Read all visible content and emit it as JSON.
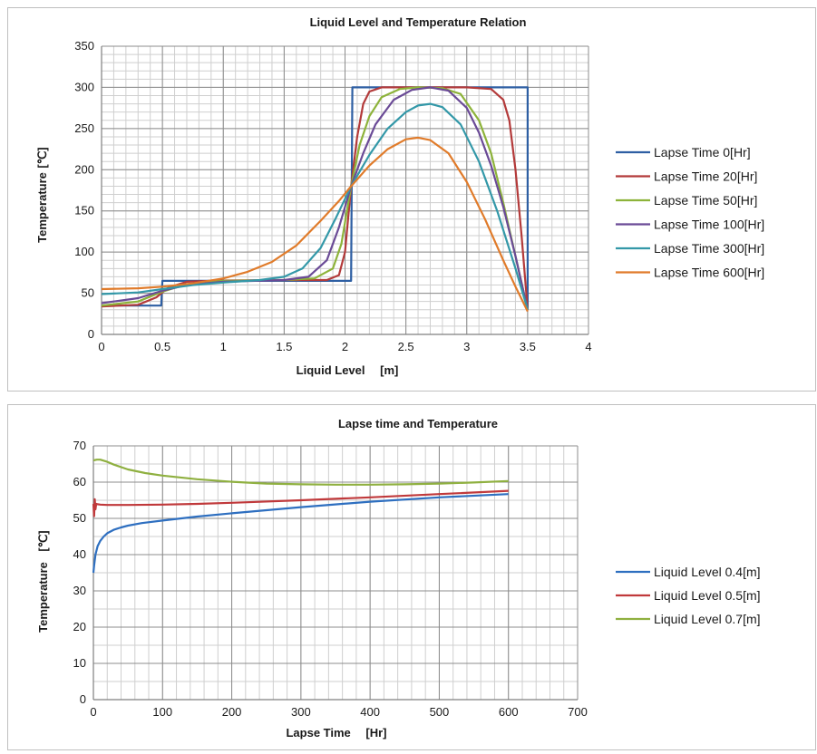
{
  "chart_data": [
    {
      "type": "line",
      "title": "Liquid Level and Temperature Relation",
      "xlabel": "Liquid Level  [m]",
      "ylabel": "Temperature",
      "yunit": "[℃]",
      "xlim": [
        0,
        4
      ],
      "ylim": [
        0,
        350
      ],
      "xticks": [
        "0",
        "0.5",
        "1",
        "1.5",
        "2",
        "2.5",
        "3",
        "3.5",
        "4"
      ],
      "yticks": [
        "0",
        "50",
        "100",
        "150",
        "200",
        "250",
        "300",
        "350"
      ],
      "grid": true,
      "legend": "right",
      "series": [
        {
          "name": "Lapse Time 0[Hr]",
          "color": "#2e5fa3",
          "x": [
            0,
            0.49,
            0.5,
            2.05,
            2.06,
            3.5,
            3.5
          ],
          "y": [
            35,
            35,
            65,
            65,
            300,
            300,
            30
          ]
        },
        {
          "name": "Lapse Time 20[Hr]",
          "color": "#b33a3a",
          "x": [
            0,
            0.3,
            0.45,
            0.55,
            0.7,
            1.0,
            1.5,
            1.85,
            1.95,
            2.0,
            2.05,
            2.1,
            2.15,
            2.2,
            2.3,
            2.4,
            2.5,
            2.6,
            3.0,
            3.2,
            3.3,
            3.35,
            3.4,
            3.45,
            3.5
          ],
          "y": [
            34,
            36,
            45,
            57,
            64,
            65.5,
            66,
            66,
            72,
            100,
            180,
            240,
            280,
            295,
            300,
            300,
            300,
            300,
            300,
            298,
            285,
            260,
            200,
            120,
            30
          ]
        },
        {
          "name": "Lapse Time 50[Hr]",
          "color": "#8db33a",
          "x": [
            0,
            0.3,
            0.5,
            0.7,
            1.0,
            1.5,
            1.75,
            1.9,
            1.97,
            2.05,
            2.12,
            2.2,
            2.3,
            2.45,
            2.6,
            2.8,
            2.95,
            3.1,
            3.2,
            3.3,
            3.4,
            3.5
          ],
          "y": [
            35,
            40,
            52,
            61,
            65,
            66,
            68,
            80,
            110,
            180,
            230,
            265,
            288,
            298,
            300,
            299,
            292,
            260,
            220,
            160,
            95,
            30
          ]
        },
        {
          "name": "Lapse Time 100[Hr]",
          "color": "#6a4a96",
          "x": [
            0,
            0.3,
            0.5,
            0.7,
            1.0,
            1.5,
            1.7,
            1.85,
            1.95,
            2.05,
            2.15,
            2.25,
            2.4,
            2.55,
            2.7,
            2.85,
            3.0,
            3.1,
            3.2,
            3.3,
            3.4,
            3.5
          ],
          "y": [
            38,
            44,
            53,
            60,
            64,
            66,
            70,
            90,
            130,
            180,
            220,
            255,
            285,
            297,
            300,
            296,
            275,
            245,
            205,
            155,
            95,
            30
          ]
        },
        {
          "name": "Lapse Time 300[Hr]",
          "color": "#3398a8",
          "x": [
            0,
            0.3,
            0.5,
            0.75,
            1.0,
            1.3,
            1.5,
            1.65,
            1.8,
            1.92,
            2.05,
            2.2,
            2.35,
            2.5,
            2.6,
            2.7,
            2.8,
            2.95,
            3.1,
            3.25,
            3.4,
            3.5
          ],
          "y": [
            49,
            51,
            55,
            60,
            63,
            66,
            70,
            80,
            105,
            140,
            180,
            218,
            250,
            270,
            278,
            280,
            276,
            255,
            210,
            150,
            80,
            30
          ]
        },
        {
          "name": "Lapse Time 600[Hr]",
          "color": "#e07b2a",
          "x": [
            0,
            0.3,
            0.5,
            0.75,
            1.0,
            1.2,
            1.4,
            1.6,
            1.8,
            1.95,
            2.05,
            2.2,
            2.35,
            2.5,
            2.6,
            2.7,
            2.85,
            3.0,
            3.15,
            3.3,
            3.4,
            3.5
          ],
          "y": [
            55,
            56,
            58,
            62,
            68,
            76,
            88,
            108,
            138,
            162,
            180,
            205,
            225,
            237,
            239,
            236,
            220,
            185,
            140,
            90,
            58,
            28
          ]
        }
      ]
    },
    {
      "type": "line",
      "title": "Lapse time and Temperature",
      "xlabel": "Lapse Time  [Hr]",
      "ylabel": "Temperature",
      "yunit": "[℃]",
      "xlim": [
        0,
        700
      ],
      "ylim": [
        0,
        70
      ],
      "xticks": [
        "0",
        "100",
        "200",
        "300",
        "400",
        "500",
        "600",
        "700"
      ],
      "yticks": [
        "0",
        "10",
        "20",
        "30",
        "40",
        "50",
        "60",
        "70"
      ],
      "grid": true,
      "legend": "right",
      "series": [
        {
          "name": "Liquid Level 0.4[m]",
          "color": "#2e6fc0",
          "x": [
            0,
            1,
            3,
            6,
            10,
            15,
            20,
            30,
            40,
            50,
            70,
            100,
            150,
            200,
            300,
            400,
            500,
            600
          ],
          "y": [
            35,
            37,
            40,
            42.3,
            43.8,
            45.0,
            45.9,
            46.9,
            47.5,
            48.0,
            48.7,
            49.4,
            50.5,
            51.4,
            53.1,
            54.6,
            55.8,
            56.7
          ]
        },
        {
          "name": "Liquid Level 0.5[m]",
          "color": "#c0393b",
          "x": [
            0,
            1,
            2,
            3,
            4,
            6,
            10,
            20,
            50,
            100,
            150,
            200,
            300,
            400,
            500,
            600
          ],
          "y": [
            54,
            50.6,
            55.3,
            52.5,
            54.0,
            53.9,
            53.8,
            53.7,
            53.7,
            53.8,
            54.0,
            54.3,
            55.0,
            55.8,
            56.7,
            57.6
          ]
        },
        {
          "name": "Liquid Level 0.7[m]",
          "color": "#8fb040",
          "x": [
            0,
            5,
            10,
            20,
            30,
            50,
            75,
            100,
            150,
            200,
            250,
            300,
            350,
            400,
            450,
            500,
            550,
            600
          ],
          "y": [
            66.0,
            66.2,
            66.2,
            65.6,
            64.8,
            63.5,
            62.5,
            61.8,
            60.8,
            60.1,
            59.6,
            59.4,
            59.3,
            59.3,
            59.4,
            59.6,
            59.9,
            60.3
          ]
        }
      ]
    }
  ]
}
